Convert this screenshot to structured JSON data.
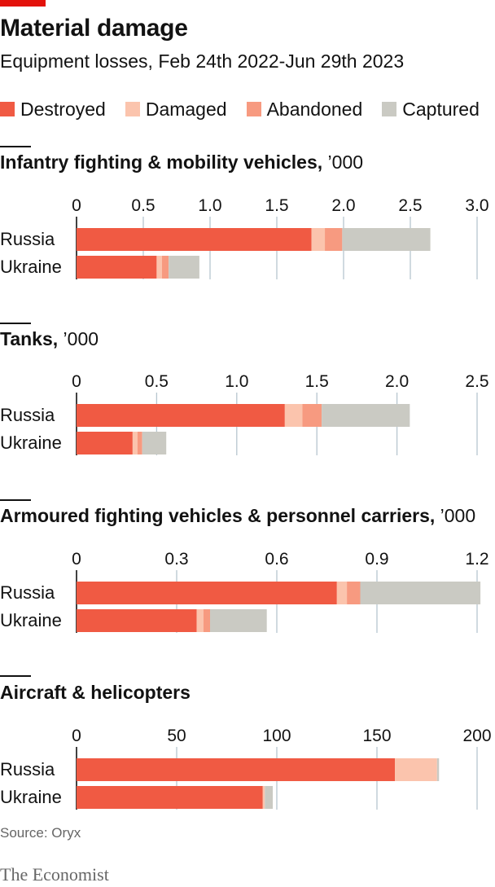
{
  "header": {
    "title": "Material damage",
    "subtitle": "Equipment losses, Feb 24th 2022-Jun 29th 2023"
  },
  "legend": [
    {
      "label": "Destroyed",
      "color": "#f05a43"
    },
    {
      "label": "Damaged",
      "color": "#fbc4ad"
    },
    {
      "label": "Abandoned",
      "color": "#f79a80"
    },
    {
      "label": "Captured",
      "color": "#cacac3"
    }
  ],
  "chart_data": [
    {
      "type": "bar",
      "orientation": "horizontal",
      "stacked": true,
      "title": "Infantry fighting & mobility vehicles,",
      "unit": "’000",
      "categories": [
        "Russia",
        "Ukraine"
      ],
      "xlim": [
        0,
        3.0
      ],
      "ticks": [
        "0",
        "0.5",
        "1.0",
        "1.5",
        "2.0",
        "2.5",
        "3.0"
      ],
      "tick_values": [
        0,
        0.5,
        1.0,
        1.5,
        2.0,
        2.5,
        3.0
      ],
      "series": [
        {
          "name": "Destroyed",
          "values": [
            1.76,
            0.6
          ]
        },
        {
          "name": "Damaged",
          "values": [
            0.1,
            0.04
          ]
        },
        {
          "name": "Abandoned",
          "values": [
            0.13,
            0.05
          ]
        },
        {
          "name": "Captured",
          "values": [
            0.66,
            0.23
          ]
        }
      ]
    },
    {
      "type": "bar",
      "orientation": "horizontal",
      "stacked": true,
      "title": "Tanks,",
      "unit": "’000",
      "categories": [
        "Russia",
        "Ukraine"
      ],
      "xlim": [
        0,
        2.5
      ],
      "ticks": [
        "0",
        "0.5",
        "1.0",
        "1.5",
        "2.0",
        "2.5"
      ],
      "tick_values": [
        0,
        0.5,
        1.0,
        1.5,
        2.0,
        2.5
      ],
      "series": [
        {
          "name": "Destroyed",
          "values": [
            1.3,
            0.35
          ]
        },
        {
          "name": "Damaged",
          "values": [
            0.11,
            0.03
          ]
        },
        {
          "name": "Abandoned",
          "values": [
            0.12,
            0.03
          ]
        },
        {
          "name": "Captured",
          "values": [
            0.55,
            0.15
          ]
        }
      ]
    },
    {
      "type": "bar",
      "orientation": "horizontal",
      "stacked": true,
      "title": "Armoured fighting vehicles & personnel carriers,",
      "unit": "’000",
      "categories": [
        "Russia",
        "Ukraine"
      ],
      "xlim": [
        0,
        1.2
      ],
      "ticks": [
        "0",
        "0.3",
        "0.6",
        "0.9",
        "1.2"
      ],
      "tick_values": [
        0,
        0.3,
        0.6,
        0.9,
        1.2
      ],
      "series": [
        {
          "name": "Destroyed",
          "values": [
            0.78,
            0.36
          ]
        },
        {
          "name": "Damaged",
          "values": [
            0.03,
            0.02
          ]
        },
        {
          "name": "Abandoned",
          "values": [
            0.04,
            0.02
          ]
        },
        {
          "name": "Captured",
          "values": [
            0.36,
            0.17
          ]
        }
      ]
    },
    {
      "type": "bar",
      "orientation": "horizontal",
      "stacked": true,
      "title": "Aircraft & helicopters",
      "unit": "",
      "categories": [
        "Russia",
        "Ukraine"
      ],
      "xlim": [
        0,
        200
      ],
      "ticks": [
        "0",
        "50",
        "100",
        "150",
        "200"
      ],
      "tick_values": [
        0,
        50,
        100,
        150,
        200
      ],
      "series": [
        {
          "name": "Destroyed",
          "values": [
            159,
            93
          ]
        },
        {
          "name": "Damaged",
          "values": [
            21,
            1
          ]
        },
        {
          "name": "Abandoned",
          "values": [
            0,
            0
          ]
        },
        {
          "name": "Captured",
          "values": [
            1,
            4
          ]
        }
      ]
    }
  ],
  "footer": {
    "source": "Source: Oryx",
    "brand": "The Economist"
  }
}
